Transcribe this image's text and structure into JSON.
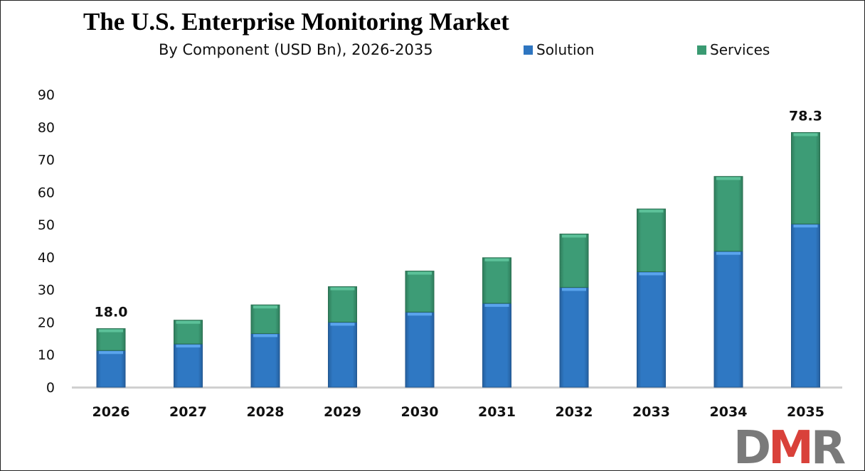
{
  "chart_data": {
    "type": "bar",
    "stacked": true,
    "title": "The U.S. Enterprise Monitoring Market",
    "subtitle": "By Component (USD Bn), 2026-2035",
    "categories": [
      "2026",
      "2027",
      "2028",
      "2029",
      "2030",
      "2031",
      "2032",
      "2033",
      "2034",
      "2035"
    ],
    "series": [
      {
        "name": "Solution",
        "color": "#2e75c0",
        "values": [
          11.3,
          13.3,
          16.5,
          20.0,
          23.1,
          25.8,
          30.7,
          35.5,
          41.8,
          50.2
        ]
      },
      {
        "name": "Services",
        "color": "#3a9a72",
        "values": [
          6.7,
          7.3,
          8.8,
          10.9,
          12.6,
          14.0,
          16.4,
          19.3,
          23.0,
          28.1
        ]
      }
    ],
    "data_labels": [
      {
        "category": "2026",
        "text": "18.0"
      },
      {
        "category": "2035",
        "text": "78.3"
      }
    ],
    "ylim": [
      0,
      90
    ],
    "yticks": [
      "0",
      "10",
      "20",
      "30",
      "40",
      "50",
      "60",
      "70",
      "80",
      "90"
    ],
    "xlabel": "",
    "ylabel": "",
    "grid": false,
    "legend": "top-right"
  },
  "logo": {
    "text": "DMR",
    "parts": [
      "D",
      "M",
      "R"
    ]
  }
}
